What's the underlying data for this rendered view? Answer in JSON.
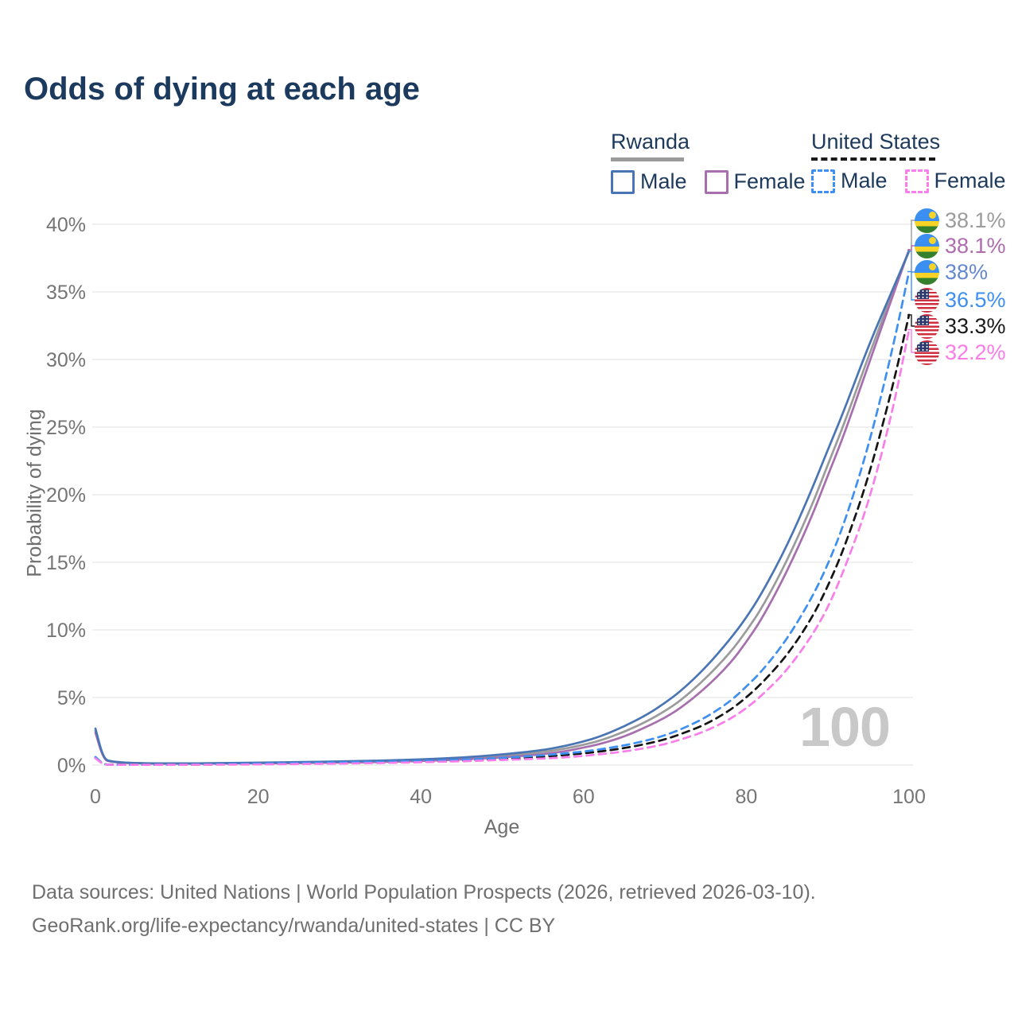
{
  "title": "Odds of dying at each age",
  "legend": {
    "groups": [
      {
        "label": "Rwanda",
        "style": "solid",
        "underline_color": "#9b9b9b",
        "items": [
          {
            "label": "Male",
            "color": "#4a75b5"
          },
          {
            "label": "Female",
            "color": "#a76fae"
          }
        ]
      },
      {
        "label": "United States",
        "style": "dashed",
        "underline_color": "#1a1a1a",
        "items": [
          {
            "label": "Male",
            "color": "#3d8ff2"
          },
          {
            "label": "Female",
            "color": "#f97ee9"
          }
        ]
      }
    ]
  },
  "chart_data": {
    "type": "line",
    "title": "Odds of dying at each age",
    "xlabel": "Age",
    "ylabel": "Probability of dying",
    "xlim": [
      0,
      100
    ],
    "ylim": [
      0,
      40
    ],
    "x_ticks": [
      0,
      20,
      40,
      60,
      80,
      100
    ],
    "y_ticks": [
      {
        "v": 0,
        "label": "0%"
      },
      {
        "v": 5,
        "label": "5%"
      },
      {
        "v": 10,
        "label": "10%"
      },
      {
        "v": 15,
        "label": "15%"
      },
      {
        "v": 20,
        "label": "20%"
      },
      {
        "v": 25,
        "label": "25%"
      },
      {
        "v": 30,
        "label": "30%"
      },
      {
        "v": 35,
        "label": "35%"
      },
      {
        "v": 40,
        "label": "40%"
      }
    ],
    "grid": "horizontal",
    "legend_position": "top-right",
    "watermark": "100",
    "x": [
      0,
      1,
      2,
      5,
      10,
      15,
      20,
      25,
      30,
      35,
      40,
      45,
      50,
      55,
      58,
      60,
      62,
      65,
      68,
      70,
      72,
      75,
      78,
      80,
      82,
      85,
      88,
      90,
      92,
      95,
      98,
      100
    ],
    "series": [
      {
        "name": "Rwanda Both sexes",
        "country": "Rwanda",
        "dash": false,
        "color": "#9b9b9b",
        "values": [
          2.55,
          0.42,
          0.23,
          0.13,
          0.11,
          0.12,
          0.15,
          0.18,
          0.22,
          0.28,
          0.36,
          0.48,
          0.67,
          0.95,
          1.25,
          1.5,
          1.8,
          2.45,
          3.3,
          4.0,
          4.8,
          6.4,
          8.3,
          9.9,
          11.7,
          15.1,
          19.1,
          22.2,
          25.2,
          30.2,
          35.0,
          38.1
        ]
      },
      {
        "name": "Rwanda Female",
        "country": "Rwanda",
        "dash": false,
        "color": "#a76fae",
        "values": [
          2.4,
          0.4,
          0.22,
          0.12,
          0.1,
          0.11,
          0.13,
          0.15,
          0.18,
          0.23,
          0.3,
          0.41,
          0.57,
          0.8,
          1.05,
          1.3,
          1.55,
          2.1,
          2.9,
          3.5,
          4.25,
          5.7,
          7.5,
          9.1,
          10.9,
          14.3,
          18.3,
          21.4,
          24.4,
          29.6,
          34.7,
          38.1
        ]
      },
      {
        "name": "Rwanda Male",
        "country": "Rwanda",
        "dash": false,
        "color": "#4a75b5",
        "values": [
          2.7,
          0.45,
          0.25,
          0.14,
          0.12,
          0.14,
          0.18,
          0.22,
          0.27,
          0.33,
          0.42,
          0.55,
          0.78,
          1.1,
          1.45,
          1.75,
          2.1,
          2.85,
          3.8,
          4.6,
          5.5,
          7.2,
          9.3,
          10.9,
          12.8,
          16.2,
          20.3,
          23.3,
          26.2,
          31.0,
          35.2,
          38.0
        ]
      },
      {
        "name": "United States Both sexes",
        "country": "United States",
        "dash": true,
        "color": "#141414",
        "values": [
          0.55,
          0.04,
          0.03,
          0.02,
          0.02,
          0.05,
          0.08,
          0.12,
          0.16,
          0.2,
          0.26,
          0.34,
          0.46,
          0.62,
          0.76,
          0.87,
          1.0,
          1.25,
          1.6,
          1.9,
          2.3,
          3.0,
          4.05,
          5.0,
          6.1,
          8.1,
          10.8,
          13.2,
          16.0,
          21.2,
          28.0,
          33.3
        ]
      },
      {
        "name": "United States Male",
        "country": "United States",
        "dash": true,
        "color": "#3d8ff2",
        "values": [
          0.6,
          0.05,
          0.03,
          0.02,
          0.02,
          0.06,
          0.11,
          0.16,
          0.2,
          0.24,
          0.3,
          0.39,
          0.53,
          0.72,
          0.88,
          1.0,
          1.16,
          1.45,
          1.85,
          2.2,
          2.65,
          3.5,
          4.7,
          5.8,
          7.0,
          9.3,
          12.3,
          14.8,
          17.8,
          23.5,
          30.8,
          36.5
        ]
      },
      {
        "name": "United States Female",
        "country": "United States",
        "dash": true,
        "color": "#f97ee9",
        "values": [
          0.5,
          0.04,
          0.02,
          0.02,
          0.02,
          0.03,
          0.05,
          0.08,
          0.11,
          0.15,
          0.21,
          0.28,
          0.38,
          0.48,
          0.58,
          0.68,
          0.8,
          1.0,
          1.3,
          1.55,
          1.9,
          2.5,
          3.4,
          4.2,
          5.2,
          7.0,
          9.5,
          11.6,
          14.4,
          19.3,
          26.2,
          32.2
        ]
      }
    ],
    "end_labels": [
      {
        "text": "38.1%",
        "value": 38.1,
        "color": "#9b9b9b",
        "flag": "rw",
        "series": "Rwanda Both sexes"
      },
      {
        "text": "38.1%",
        "value": 38.1,
        "color": "#ae6cae",
        "flag": "rw",
        "series": "Rwanda Female"
      },
      {
        "text": "38%",
        "value": 38.0,
        "color": "#6489cf",
        "flag": "rw",
        "series": "Rwanda Male"
      },
      {
        "text": "36.5%",
        "value": 36.5,
        "color": "#3d8ff2",
        "flag": "us",
        "series": "United States Male"
      },
      {
        "text": "33.3%",
        "value": 33.3,
        "color": "#1a1a1a",
        "flag": "us",
        "series": "United States Both sexes"
      },
      {
        "text": "32.2%",
        "value": 32.2,
        "color": "#fb7be9",
        "flag": "us",
        "series": "United States Female"
      }
    ]
  },
  "footer": {
    "line1": "Data sources: United Nations | World Population Prospects (2026, retrieved 2026-03-10).",
    "line2": "GeoRank.org/life-expectancy/rwanda/united-states | CC BY"
  }
}
